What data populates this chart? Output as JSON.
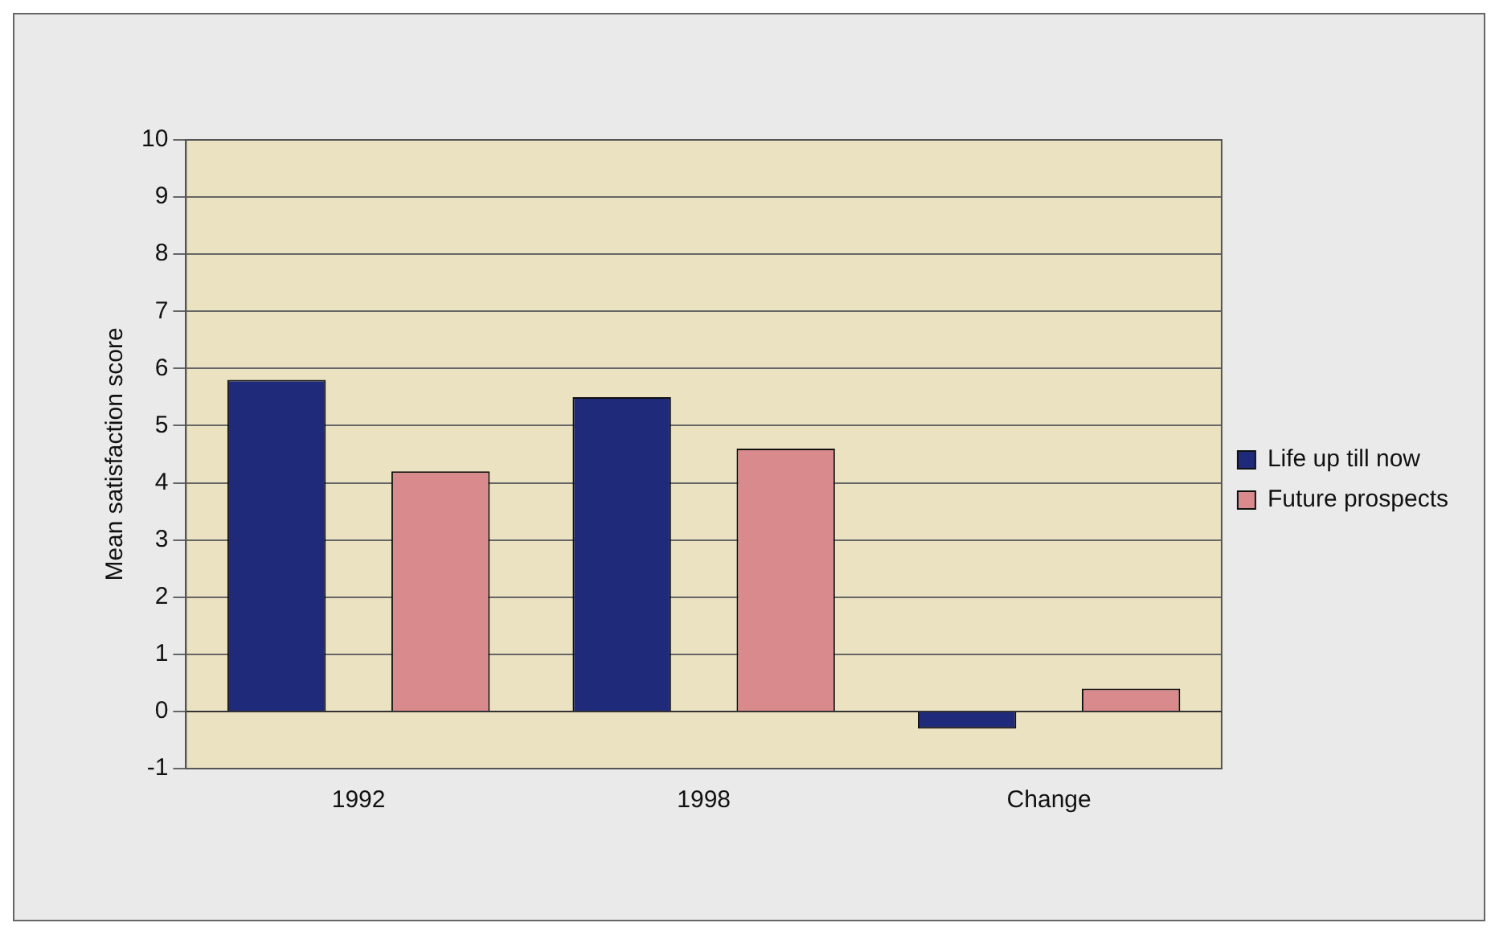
{
  "chart_data": {
    "type": "bar",
    "ylabel": "Mean satisfaction score",
    "categories": [
      "1992",
      "1998",
      "Change"
    ],
    "series": [
      {
        "name": "Life up till now",
        "color": "#1f2a7a",
        "values": [
          5.8,
          5.5,
          -0.3
        ]
      },
      {
        "name": "Future prospects",
        "color": "#d98a8c",
        "values": [
          4.2,
          4.6,
          0.4
        ]
      }
    ],
    "ylim": [
      -1,
      10
    ],
    "yticks": [
      -1,
      0,
      1,
      2,
      3,
      4,
      5,
      6,
      7,
      8,
      9,
      10
    ],
    "grid": "y",
    "legend": "right"
  }
}
